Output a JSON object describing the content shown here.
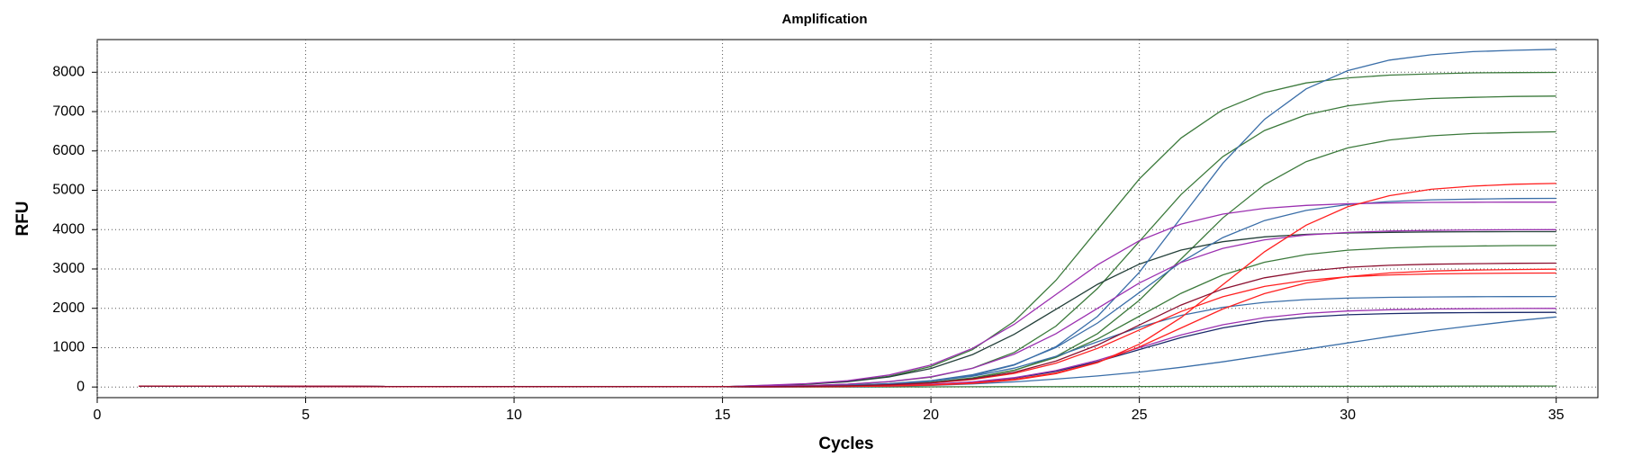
{
  "chart_data": {
    "type": "line",
    "title": "Amplification",
    "x_label": "Cycles",
    "y_label": "RFU",
    "x": [
      1,
      2,
      3,
      4,
      5,
      6,
      7,
      8,
      9,
      10,
      11,
      12,
      13,
      14,
      15,
      16,
      17,
      18,
      19,
      20,
      21,
      22,
      23,
      24,
      25,
      26,
      27,
      28,
      29,
      30,
      31,
      32,
      33,
      34,
      35
    ],
    "xlim": [
      0,
      36
    ],
    "xticks": [
      0,
      5,
      10,
      15,
      20,
      25,
      30,
      35
    ],
    "ylim": [
      -270,
      8830
    ],
    "yticks": [
      0,
      1000,
      2000,
      3000,
      4000,
      5000,
      6000,
      7000,
      8000
    ],
    "grid": true,
    "series": [
      {
        "color": "#3c7a3c",
        "values": [
          20,
          19,
          18,
          17,
          16,
          15,
          14,
          13,
          12,
          11,
          10,
          9,
          8,
          7,
          6,
          40,
          74,
          144,
          272,
          520,
          952,
          1672,
          2712,
          4000,
          5288,
          6328,
          7048,
          7480,
          7728,
          7856,
          7928,
          7960,
          7984,
          7992,
          7996
        ]
      },
      {
        "color": "#3c7a3c",
        "values": [
          20,
          19,
          18,
          17,
          16,
          15,
          14,
          13,
          12,
          11,
          10,
          9,
          8,
          7,
          6,
          18,
          37,
          69,
          133,
          252,
          481,
          881,
          1547,
          2509,
          3700,
          4891,
          5853,
          6519,
          6919,
          7148,
          7267,
          7333,
          7363,
          7385,
          7393
        ]
      },
      {
        "color": "#3c7a3c",
        "values": [
          20,
          19,
          18,
          17,
          16,
          15,
          14,
          13,
          12,
          11,
          10,
          9,
          8,
          7,
          6,
          8,
          16,
          33,
          60,
          117,
          221,
          423,
          774,
          1359,
          2204,
          3250,
          4297,
          5142,
          5727,
          6078,
          6279,
          6383,
          6442,
          6468,
          6487
        ]
      },
      {
        "color": "#24403a",
        "values": [
          20,
          19,
          18,
          17,
          16,
          15,
          14,
          13,
          12,
          11,
          10,
          9,
          8,
          7,
          6,
          37,
          71,
          134,
          257,
          470,
          826,
          1339,
          1975,
          2611,
          3124,
          3480,
          3693,
          3816,
          3879,
          3914,
          3930,
          3942,
          3946,
          3948,
          3949
        ]
      },
      {
        "color": "#3c7a3c",
        "values": [
          20,
          19,
          18,
          17,
          16,
          15,
          14,
          13,
          12,
          11,
          10,
          9,
          8,
          7,
          6,
          9,
          18,
          33,
          65,
          122,
          234,
          428,
          752,
          1220,
          1800,
          2380,
          2848,
          3172,
          3366,
          3478,
          3535,
          3568,
          3582,
          3593,
          3596
        ]
      },
      {
        "color": "#3c7a3c",
        "values": [
          20,
          19,
          18,
          17,
          16,
          15,
          14,
          13,
          12,
          11,
          10,
          9,
          8,
          7,
          6,
          0,
          0,
          0,
          2,
          4,
          6,
          8,
          10,
          12,
          14,
          15,
          16,
          17,
          18,
          19,
          20,
          21,
          22,
          23,
          24
        ]
      },
      {
        "color": "#3a6ea8",
        "values": [
          20,
          19,
          18,
          17,
          16,
          15,
          14,
          13,
          12,
          11,
          10,
          9,
          8,
          7,
          6,
          11,
          22,
          43,
          80,
          155,
          292,
          559,
          1023,
          1797,
          2915,
          4300,
          5685,
          6803,
          7577,
          8041,
          8308,
          8443,
          8523,
          8557,
          8583
        ]
      },
      {
        "color": "#3a6ea8",
        "values": [
          20,
          19,
          18,
          17,
          16,
          15,
          14,
          13,
          12,
          11,
          10,
          9,
          8,
          7,
          6,
          12,
          24,
          45,
          86,
          163,
          312,
          571,
          1003,
          1627,
          2400,
          3173,
          3797,
          4229,
          4488,
          4637,
          4714,
          4757,
          4776,
          4790,
          4795
        ]
      },
      {
        "color": "#3a6ea8",
        "values": [
          20,
          19,
          18,
          17,
          16,
          15,
          14,
          13,
          12,
          11,
          10,
          9,
          8,
          7,
          6,
          12,
          21,
          41,
          78,
          150,
          274,
          481,
          780,
          1150,
          1520,
          1819,
          2026,
          2151,
          2222,
          2259,
          2279,
          2289,
          2295,
          2298,
          2299
        ]
      },
      {
        "color": "#1a2a6a",
        "values": [
          20,
          19,
          18,
          17,
          16,
          15,
          14,
          13,
          12,
          11,
          10,
          9,
          8,
          7,
          6,
          5,
          10,
          18,
          34,
          65,
          124,
          226,
          397,
          644,
          950,
          1256,
          1503,
          1674,
          1777,
          1835,
          1866,
          1883,
          1891,
          1896,
          1898
        ]
      },
      {
        "color": "#3a6ea8",
        "values": [
          20,
          19,
          18,
          17,
          16,
          15,
          14,
          13,
          12,
          11,
          10,
          9,
          8,
          7,
          6,
          0,
          5,
          10,
          20,
          40,
          80,
          130,
          200,
          280,
          380,
          500,
          640,
          800,
          960,
          1120,
          1280,
          1430,
          1560,
          1680,
          1780
        ]
      },
      {
        "color": "#9b30b0",
        "values": [
          20,
          19,
          18,
          17,
          16,
          15,
          14,
          13,
          12,
          11,
          10,
          9,
          8,
          7,
          6,
          44,
          85,
          160,
          306,
          559,
          982,
          1593,
          2350,
          3107,
          3718,
          4141,
          4395,
          4540,
          4615,
          4658,
          4677,
          4691,
          4695,
          4698,
          4699
        ]
      },
      {
        "color": "#9b30b0",
        "values": [
          20,
          19,
          18,
          17,
          16,
          15,
          14,
          13,
          12,
          11,
          10,
          9,
          8,
          7,
          6,
          5,
          10,
          19,
          36,
          68,
          130,
          238,
          418,
          678,
          1000,
          1322,
          1582,
          1762,
          1870,
          1932,
          1964,
          1982,
          1990,
          1996,
          1998
        ]
      },
      {
        "color": "#9b30b0",
        "values": [
          20,
          19,
          18,
          17,
          16,
          15,
          14,
          13,
          12,
          11,
          10,
          9,
          8,
          7,
          6,
          20,
          37,
          72,
          136,
          260,
          476,
          836,
          1356,
          2000,
          2644,
          3164,
          3524,
          3740,
          3864,
          3928,
          3964,
          3980,
          3992,
          3996,
          3998
        ]
      },
      {
        "color": "#ff2020",
        "values": [
          20,
          19,
          18,
          17,
          16,
          15,
          14,
          13,
          12,
          11,
          10,
          9,
          8,
          7,
          6,
          4,
          7,
          13,
          26,
          48,
          94,
          177,
          338,
          619,
          1087,
          1763,
          2600,
          3437,
          4113,
          4581,
          4862,
          5025,
          5106,
          5153,
          5174
        ]
      },
      {
        "color": "#ff2020",
        "values": [
          20,
          19,
          18,
          17,
          16,
          15,
          14,
          13,
          12,
          11,
          10,
          9,
          8,
          7,
          6,
          4,
          8,
          15,
          28,
          54,
          102,
          195,
          357,
          627,
          1017,
          1500,
          1983,
          2373,
          2643,
          2805,
          2898,
          2946,
          2973,
          2985,
          2994
        ]
      },
      {
        "color": "#ff2020",
        "values": [
          20,
          19,
          18,
          17,
          16,
          15,
          14,
          13,
          12,
          11,
          10,
          9,
          8,
          7,
          6,
          7,
          15,
          27,
          52,
          99,
          189,
          345,
          606,
          983,
          1450,
          1917,
          2294,
          2555,
          2711,
          2801,
          2848,
          2874,
          2886,
          2894,
          2897
        ]
      },
      {
        "color": "#8b1030",
        "values": [
          20,
          19,
          18,
          17,
          16,
          15,
          14,
          13,
          12,
          11,
          10,
          9,
          8,
          7,
          6,
          8,
          16,
          29,
          57,
          107,
          205,
          375,
          658,
          1068,
          1575,
          2082,
          2492,
          2775,
          2943,
          3043,
          3093,
          3121,
          3134,
          3144,
          3148
        ]
      }
    ]
  }
}
